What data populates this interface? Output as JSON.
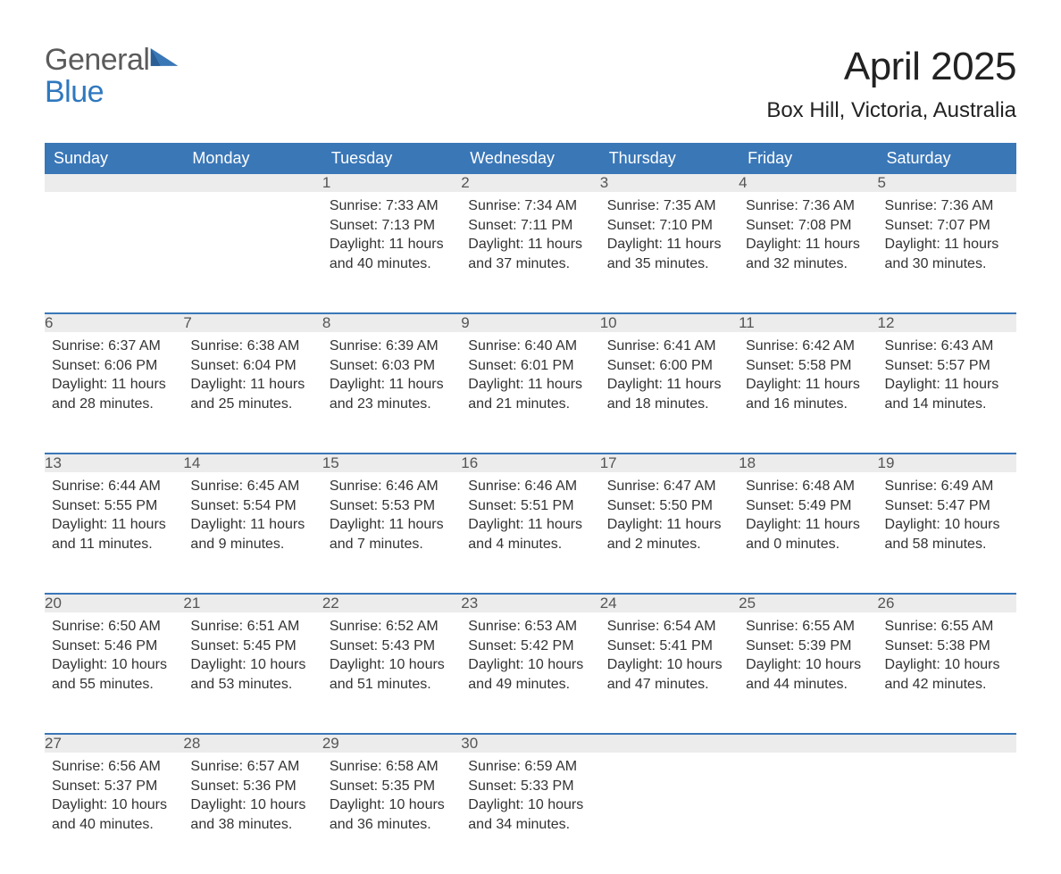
{
  "brand": {
    "word1": "General",
    "word2": "Blue",
    "color_gray": "#5b5b5b",
    "color_blue": "#2f78bf"
  },
  "title": "April 2025",
  "location": "Box Hill, Victoria, Australia",
  "theme": {
    "header_bg": "#3a77b7",
    "header_text": "#ffffff",
    "daynum_bg": "#ececec",
    "daynum_border": "#3a77b7",
    "body_text": "#333333",
    "page_bg": "#ffffff",
    "title_fontsize": 44,
    "location_fontsize": 24,
    "header_fontsize": 18,
    "cell_fontsize": 16
  },
  "columns": [
    "Sunday",
    "Monday",
    "Tuesday",
    "Wednesday",
    "Thursday",
    "Friday",
    "Saturday"
  ],
  "weeks": [
    [
      null,
      null,
      {
        "n": "1",
        "sunrise": "Sunrise: 7:33 AM",
        "sunset": "Sunset: 7:13 PM",
        "day": "Daylight: 11 hours and 40 minutes."
      },
      {
        "n": "2",
        "sunrise": "Sunrise: 7:34 AM",
        "sunset": "Sunset: 7:11 PM",
        "day": "Daylight: 11 hours and 37 minutes."
      },
      {
        "n": "3",
        "sunrise": "Sunrise: 7:35 AM",
        "sunset": "Sunset: 7:10 PM",
        "day": "Daylight: 11 hours and 35 minutes."
      },
      {
        "n": "4",
        "sunrise": "Sunrise: 7:36 AM",
        "sunset": "Sunset: 7:08 PM",
        "day": "Daylight: 11 hours and 32 minutes."
      },
      {
        "n": "5",
        "sunrise": "Sunrise: 7:36 AM",
        "sunset": "Sunset: 7:07 PM",
        "day": "Daylight: 11 hours and 30 minutes."
      }
    ],
    [
      {
        "n": "6",
        "sunrise": "Sunrise: 6:37 AM",
        "sunset": "Sunset: 6:06 PM",
        "day": "Daylight: 11 hours and 28 minutes."
      },
      {
        "n": "7",
        "sunrise": "Sunrise: 6:38 AM",
        "sunset": "Sunset: 6:04 PM",
        "day": "Daylight: 11 hours and 25 minutes."
      },
      {
        "n": "8",
        "sunrise": "Sunrise: 6:39 AM",
        "sunset": "Sunset: 6:03 PM",
        "day": "Daylight: 11 hours and 23 minutes."
      },
      {
        "n": "9",
        "sunrise": "Sunrise: 6:40 AM",
        "sunset": "Sunset: 6:01 PM",
        "day": "Daylight: 11 hours and 21 minutes."
      },
      {
        "n": "10",
        "sunrise": "Sunrise: 6:41 AM",
        "sunset": "Sunset: 6:00 PM",
        "day": "Daylight: 11 hours and 18 minutes."
      },
      {
        "n": "11",
        "sunrise": "Sunrise: 6:42 AM",
        "sunset": "Sunset: 5:58 PM",
        "day": "Daylight: 11 hours and 16 minutes."
      },
      {
        "n": "12",
        "sunrise": "Sunrise: 6:43 AM",
        "sunset": "Sunset: 5:57 PM",
        "day": "Daylight: 11 hours and 14 minutes."
      }
    ],
    [
      {
        "n": "13",
        "sunrise": "Sunrise: 6:44 AM",
        "sunset": "Sunset: 5:55 PM",
        "day": "Daylight: 11 hours and 11 minutes."
      },
      {
        "n": "14",
        "sunrise": "Sunrise: 6:45 AM",
        "sunset": "Sunset: 5:54 PM",
        "day": "Daylight: 11 hours and 9 minutes."
      },
      {
        "n": "15",
        "sunrise": "Sunrise: 6:46 AM",
        "sunset": "Sunset: 5:53 PM",
        "day": "Daylight: 11 hours and 7 minutes."
      },
      {
        "n": "16",
        "sunrise": "Sunrise: 6:46 AM",
        "sunset": "Sunset: 5:51 PM",
        "day": "Daylight: 11 hours and 4 minutes."
      },
      {
        "n": "17",
        "sunrise": "Sunrise: 6:47 AM",
        "sunset": "Sunset: 5:50 PM",
        "day": "Daylight: 11 hours and 2 minutes."
      },
      {
        "n": "18",
        "sunrise": "Sunrise: 6:48 AM",
        "sunset": "Sunset: 5:49 PM",
        "day": "Daylight: 11 hours and 0 minutes."
      },
      {
        "n": "19",
        "sunrise": "Sunrise: 6:49 AM",
        "sunset": "Sunset: 5:47 PM",
        "day": "Daylight: 10 hours and 58 minutes."
      }
    ],
    [
      {
        "n": "20",
        "sunrise": "Sunrise: 6:50 AM",
        "sunset": "Sunset: 5:46 PM",
        "day": "Daylight: 10 hours and 55 minutes."
      },
      {
        "n": "21",
        "sunrise": "Sunrise: 6:51 AM",
        "sunset": "Sunset: 5:45 PM",
        "day": "Daylight: 10 hours and 53 minutes."
      },
      {
        "n": "22",
        "sunrise": "Sunrise: 6:52 AM",
        "sunset": "Sunset: 5:43 PM",
        "day": "Daylight: 10 hours and 51 minutes."
      },
      {
        "n": "23",
        "sunrise": "Sunrise: 6:53 AM",
        "sunset": "Sunset: 5:42 PM",
        "day": "Daylight: 10 hours and 49 minutes."
      },
      {
        "n": "24",
        "sunrise": "Sunrise: 6:54 AM",
        "sunset": "Sunset: 5:41 PM",
        "day": "Daylight: 10 hours and 47 minutes."
      },
      {
        "n": "25",
        "sunrise": "Sunrise: 6:55 AM",
        "sunset": "Sunset: 5:39 PM",
        "day": "Daylight: 10 hours and 44 minutes."
      },
      {
        "n": "26",
        "sunrise": "Sunrise: 6:55 AM",
        "sunset": "Sunset: 5:38 PM",
        "day": "Daylight: 10 hours and 42 minutes."
      }
    ],
    [
      {
        "n": "27",
        "sunrise": "Sunrise: 6:56 AM",
        "sunset": "Sunset: 5:37 PM",
        "day": "Daylight: 10 hours and 40 minutes."
      },
      {
        "n": "28",
        "sunrise": "Sunrise: 6:57 AM",
        "sunset": "Sunset: 5:36 PM",
        "day": "Daylight: 10 hours and 38 minutes."
      },
      {
        "n": "29",
        "sunrise": "Sunrise: 6:58 AM",
        "sunset": "Sunset: 5:35 PM",
        "day": "Daylight: 10 hours and 36 minutes."
      },
      {
        "n": "30",
        "sunrise": "Sunrise: 6:59 AM",
        "sunset": "Sunset: 5:33 PM",
        "day": "Daylight: 10 hours and 34 minutes."
      },
      null,
      null,
      null
    ]
  ]
}
